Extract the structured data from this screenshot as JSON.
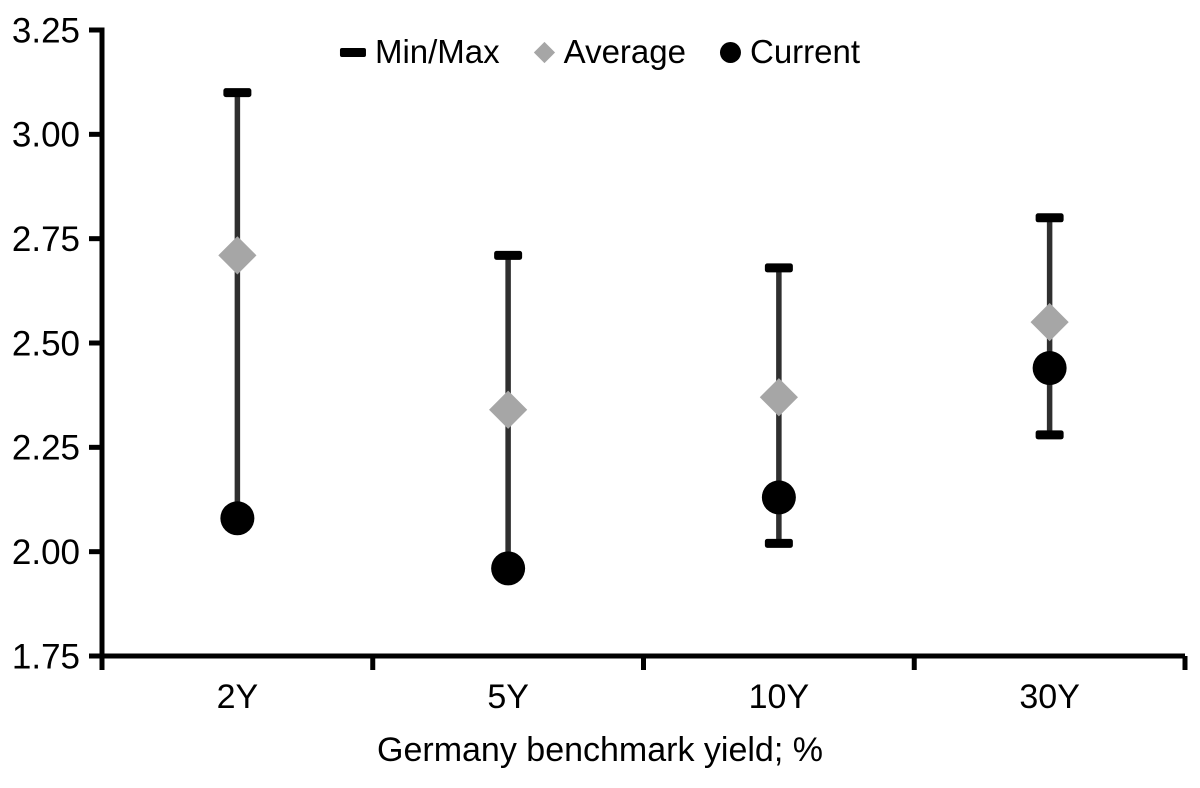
{
  "chart_data": {
    "type": "scatter",
    "subtype": "min-max-range-with-average-and-current-markers",
    "title": "",
    "xlabel": "Germany benchmark yield; %",
    "ylabel": "",
    "categories": [
      "2Y",
      "5Y",
      "10Y",
      "30Y"
    ],
    "ylim": [
      1.75,
      3.25
    ],
    "ytick_step": 0.25,
    "ytick_labels": [
      "3.25",
      "3.00",
      "2.75",
      "2.50",
      "2.25",
      "2.00",
      "1.75"
    ],
    "grid": false,
    "legend_position": "top-center",
    "legend": [
      {
        "label": "Min/Max",
        "marker": "dash",
        "color": "#000000"
      },
      {
        "label": "Average",
        "marker": "diamond",
        "color": "#a6a6a6"
      },
      {
        "label": "Current",
        "marker": "circle",
        "color": "#000000"
      }
    ],
    "series": [
      {
        "name": "Min/Max",
        "role": "range",
        "max": [
          3.1,
          2.71,
          2.68,
          2.8
        ],
        "min": [
          2.08,
          1.96,
          2.02,
          2.28
        ],
        "min_cap_visible": [
          false,
          false,
          true,
          true
        ]
      },
      {
        "name": "Average",
        "role": "point",
        "marker": "diamond",
        "values": [
          2.71,
          2.34,
          2.37,
          2.55
        ]
      },
      {
        "name": "Current",
        "role": "point",
        "marker": "circle",
        "values": [
          2.08,
          1.96,
          2.13,
          2.44
        ]
      }
    ],
    "colors": {
      "axis": "#000000",
      "text": "#000000",
      "range_line": "#2f2f2f",
      "min_max_cap": "#000000",
      "average_marker": "#a6a6a6",
      "current_marker": "#000000",
      "background": "#ffffff"
    }
  }
}
